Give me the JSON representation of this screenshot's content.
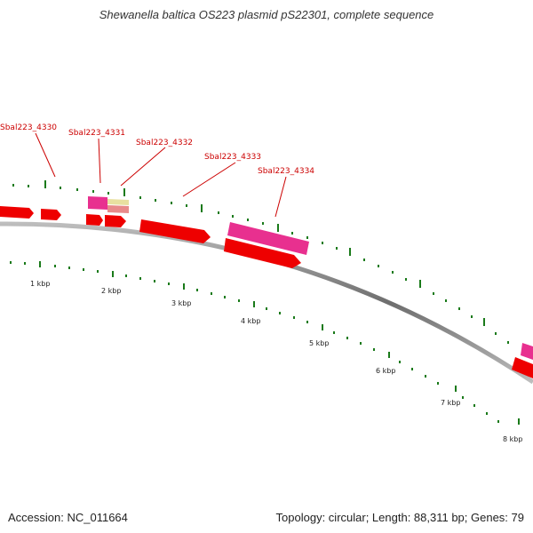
{
  "title": "Shewanella baltica OS223 plasmid pS22301, complete sequence",
  "accession": "Accession: NC_011664",
  "summary": "Topology: circular; Length: 88,311 bp; Genes: 79",
  "scale_labels": [
    "1 kbp",
    "2 kbp",
    "3 kbp",
    "4 kbp",
    "5 kbp",
    "6 kbp",
    "7 kbp",
    "8 kbp"
  ],
  "gene_labels": [
    "Sbal223_4330",
    "Sbal223_4331",
    "Sbal223_4332",
    "Sbal223_4333",
    "Sbal223_4334"
  ],
  "colors": {
    "backbone": "#8a8a8a",
    "gene_red": "#ee0000",
    "gene_magenta": "#e8308f",
    "gene_yellow": "#e8e0a0",
    "gene_pink": "#e88a8a",
    "tick_green": "#1a7a1a",
    "label_red": "#cc0000"
  }
}
